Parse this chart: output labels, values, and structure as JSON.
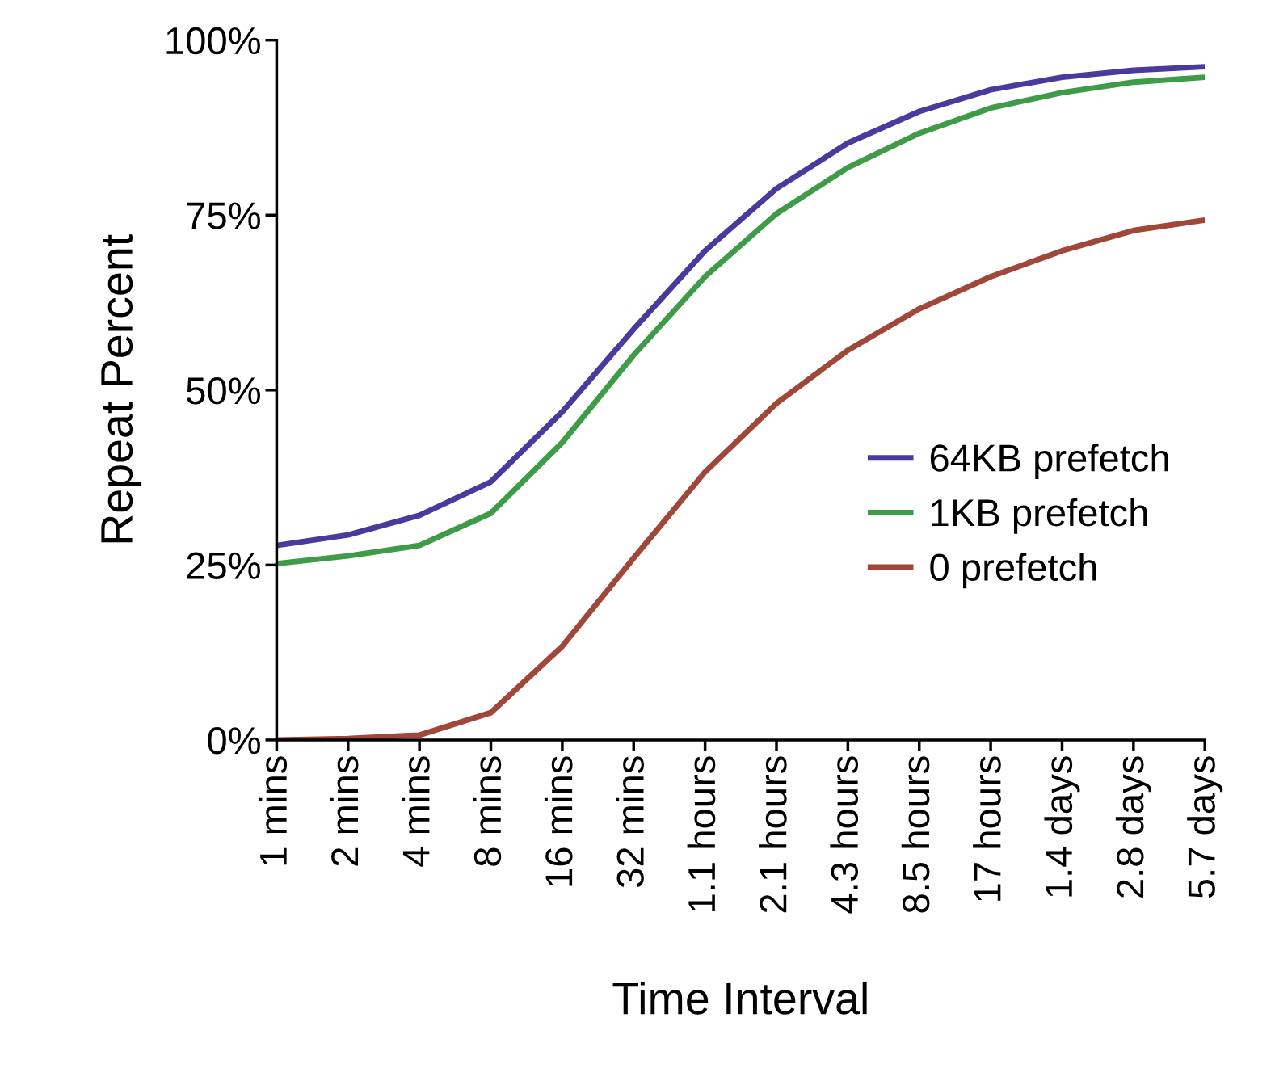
{
  "chart_data": {
    "type": "line",
    "xlabel": "Time Interval",
    "ylabel": "Repeat Percent",
    "categories": [
      "1 mins",
      "2 mins",
      "4 mins",
      "8 mins",
      "16 mins",
      "32 mins",
      "1.1 hours",
      "2.1 hours",
      "4.3 hours",
      "8.5 hours",
      "17 hours",
      "1.4 days",
      "2.8 days",
      "5.7 days"
    ],
    "series": [
      {
        "name": "64KB prefetch",
        "color": "#4b3a9e",
        "values": [
          27.8,
          29.3,
          32.1,
          36.9,
          46.9,
          58.7,
          69.9,
          78.8,
          85.3,
          89.8,
          92.9,
          94.7,
          95.7,
          96.2
        ]
      },
      {
        "name": "1KB prefetch",
        "color": "#3e9b47",
        "values": [
          25.2,
          26.3,
          27.8,
          32.4,
          42.5,
          55.0,
          66.2,
          75.2,
          81.8,
          86.7,
          90.3,
          92.5,
          94.0,
          94.7
        ]
      },
      {
        "name": "0 prefetch",
        "color": "#a0473a",
        "values": [
          0,
          0.2,
          0.7,
          3.9,
          13.4,
          26.0,
          38.3,
          48.1,
          55.7,
          61.6,
          66.2,
          69.9,
          72.8,
          74.3
        ]
      }
    ],
    "ylim": [
      0,
      100
    ],
    "yticks": [
      {
        "value": 0,
        "label": "0%"
      },
      {
        "value": 25,
        "label": "25%"
      },
      {
        "value": 50,
        "label": "50%"
      },
      {
        "value": 75,
        "label": "75%"
      },
      {
        "value": 100,
        "label": "100%"
      }
    ],
    "grid": false,
    "legend": "right",
    "marker": "none",
    "line_style": "solid"
  }
}
